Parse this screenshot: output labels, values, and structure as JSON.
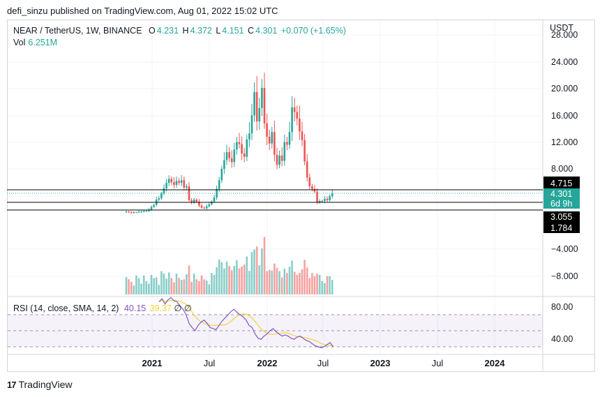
{
  "publish_line": "defi_sinzu published on TradingView.com, Aug 01, 2022 15:02 UTC",
  "symbol": {
    "title": "NEAR / TetherUS, 1W, BINANCE",
    "o_label": "O",
    "o": "4.231",
    "h_label": "H",
    "h": "4.372",
    "l_label": "L",
    "l": "4.151",
    "c_label": "C",
    "c": "4.301",
    "change": "+0.070 (+1.65%)"
  },
  "volume": {
    "label": "Vol",
    "value": "6.251M"
  },
  "rsi": {
    "label": "RSI (14, close, SMA, 14, 2)",
    "value": "40.15",
    "sma_value": "39.37",
    "na1": "∅",
    "na2": "∅"
  },
  "currency": "USDT",
  "price_axis": [
    "28.000",
    "24.000",
    "20.000",
    "16.000",
    "12.000",
    "8.000",
    "−4.000",
    "−8.000"
  ],
  "rsi_axis": [
    "80.00",
    "40.00"
  ],
  "time_axis": [
    "2021",
    "Jul",
    "2022",
    "Jul",
    "2023",
    "Jul",
    "2024"
  ],
  "price_tags": [
    {
      "value": "4.715",
      "color": "#000000"
    },
    {
      "value": "4.301",
      "color": "#26a69a"
    },
    {
      "value": "6d 9h",
      "color": "#26a69a"
    },
    {
      "value": "3.055",
      "color": "#000000"
    },
    {
      "value": "1.784",
      "color": "#000000"
    }
  ],
  "brand": "TradingView",
  "colors": {
    "up": "#26a69a",
    "down": "#ef5350",
    "rsi": "#7e57c2",
    "rsi_ma": "#f0d43a"
  },
  "chart_data": {
    "type": "candlestick",
    "interval": "1W",
    "horizontal_levels": [
      4.715,
      3.055,
      1.784
    ],
    "closes": [
      1.6,
      1.5,
      1.4,
      1.5,
      1.5,
      1.6,
      1.6,
      1.7,
      1.7,
      1.9,
      2.3,
      2.6,
      3.4,
      3.6,
      4.3,
      5.1,
      5.9,
      6.5,
      6.0,
      5.6,
      6.2,
      5.9,
      6.3,
      5.2,
      5.4,
      3.3,
      3.0,
      3.4,
      3.1,
      2.5,
      2.2,
      2.1,
      2.4,
      2.7,
      3.1,
      3.7,
      5.0,
      6.3,
      8.0,
      9.3,
      10.5,
      9.6,
      9.0,
      10.9,
      12.0,
      11.7,
      10.3,
      9.8,
      12.4,
      13.3,
      16.0,
      19.5,
      15.1,
      17.1,
      20.1,
      14.8,
      12.8,
      11.8,
      13.5,
      10.1,
      8.6,
      10.0,
      9.2,
      12.0,
      11.6,
      13.5,
      17.2,
      16.5,
      15.5,
      13.6,
      12.3,
      9.1,
      6.7,
      5.4,
      5.0,
      4.6,
      3.0,
      3.2,
      3.2,
      3.5,
      3.3,
      3.9,
      4.3
    ]
  }
}
